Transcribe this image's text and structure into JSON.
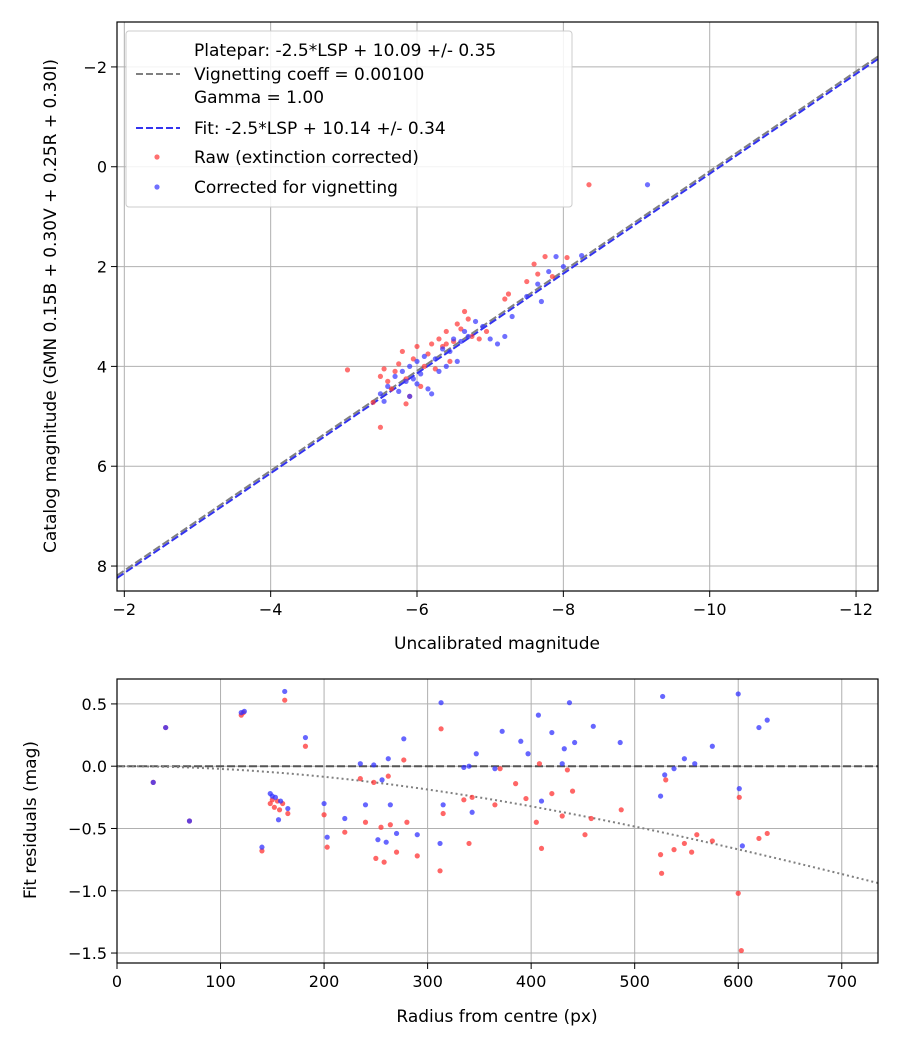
{
  "chart_data": [
    {
      "type": "scatter",
      "xlabel": "Uncalibrated magnitude",
      "ylabel": "Catalog magnitude (GMN 0.15B + 0.30V + 0.25R + 0.30I)",
      "xlim": [
        -1.9,
        -12.3
      ],
      "ylim": [
        8.5,
        -2.9
      ],
      "x_ticks": [
        -2,
        -4,
        -6,
        -8,
        -10,
        -12
      ],
      "x_tick_labels": [
        "−2",
        "−4",
        "−6",
        "−8",
        "−10",
        "−12"
      ],
      "y_ticks": [
        -2,
        0,
        2,
        4,
        6,
        8
      ],
      "y_tick_labels": [
        "−2",
        "0",
        "2",
        "4",
        "6",
        "8"
      ],
      "grid": true,
      "legend_position": "top-left",
      "legend": [
        {
          "label_lines": [
            "Platepar: -2.5*LSP + 10.09 +/- 0.35",
            "Vignetting coeff = 0.00100",
            "Gamma = 1.00"
          ],
          "style": "dashed",
          "color": "#808080"
        },
        {
          "label_lines": [
            "Fit: -2.5*LSP + 10.14 +/- 0.34"
          ],
          "style": "dashed",
          "color": "#3333ee"
        },
        {
          "label_lines": [
            "Raw (extinction corrected)"
          ],
          "style": "marker",
          "color": "#ff3333"
        },
        {
          "label_lines": [
            "Corrected for vignetting"
          ],
          "style": "marker",
          "color": "#3333ff"
        }
      ],
      "lines": [
        {
          "name": "Platepar",
          "slope": -2.5,
          "lsp_scale": -2.5,
          "intercept": 10.09,
          "color": "#808080",
          "dash": "dashed"
        },
        {
          "name": "Fit",
          "slope": -2.5,
          "lsp_scale": -2.5,
          "intercept": 10.14,
          "color": "#3333ee",
          "dash": "dashed"
        }
      ],
      "series": [
        {
          "name": "Raw (extinction corrected)",
          "color": "#ff3333",
          "points": [
            [
              -5.05,
              4.07
            ],
            [
              -5.4,
              4.72
            ],
            [
              -5.5,
              5.22
            ],
            [
              -5.55,
              4.05
            ],
            [
              -5.5,
              4.2
            ],
            [
              -5.6,
              4.3
            ],
            [
              -5.7,
              4.1
            ],
            [
              -5.75,
              3.95
            ],
            [
              -5.8,
              3.7
            ],
            [
              -5.85,
              4.25
            ],
            [
              -5.9,
              4.6
            ],
            [
              -5.95,
              3.85
            ],
            [
              -6.0,
              3.6
            ],
            [
              -6.05,
              4.4
            ],
            [
              -6.1,
              4.0
            ],
            [
              -6.15,
              3.75
            ],
            [
              -6.2,
              3.55
            ],
            [
              -6.25,
              4.05
            ],
            [
              -6.3,
              3.45
            ],
            [
              -6.35,
              3.6
            ],
            [
              -6.4,
              3.3
            ],
            [
              -6.45,
              3.9
            ],
            [
              -6.5,
              3.5
            ],
            [
              -6.55,
              3.15
            ],
            [
              -6.6,
              3.25
            ],
            [
              -6.65,
              2.9
            ],
            [
              -6.7,
              3.05
            ],
            [
              -6.75,
              3.4
            ],
            [
              -6.85,
              3.45
            ],
            [
              -6.95,
              3.3
            ],
            [
              -7.2,
              2.65
            ],
            [
              -7.25,
              2.55
            ],
            [
              -7.5,
              2.3
            ],
            [
              -7.6,
              1.95
            ],
            [
              -7.65,
              2.15
            ],
            [
              -7.75,
              1.8
            ],
            [
              -7.85,
              2.2
            ],
            [
              -8.05,
              1.82
            ],
            [
              -8.35,
              0.36
            ],
            [
              -5.85,
              4.75
            ],
            [
              -6.4,
              3.55
            ],
            [
              -5.65,
              4.45
            ]
          ]
        },
        {
          "name": "Corrected for vignetting",
          "color": "#3333ff",
          "points": [
            [
              -5.5,
              4.55
            ],
            [
              -5.55,
              4.7
            ],
            [
              -5.6,
              4.4
            ],
            [
              -5.7,
              4.2
            ],
            [
              -5.75,
              4.5
            ],
            [
              -5.8,
              4.1
            ],
            [
              -5.85,
              4.3
            ],
            [
              -5.9,
              4.0
            ],
            [
              -5.95,
              4.25
            ],
            [
              -6.0,
              3.9
            ],
            [
              -6.05,
              4.15
            ],
            [
              -6.1,
              3.8
            ],
            [
              -6.15,
              4.45
            ],
            [
              -6.2,
              4.55
            ],
            [
              -6.25,
              3.85
            ],
            [
              -6.3,
              4.1
            ],
            [
              -6.35,
              3.65
            ],
            [
              -6.4,
              4.0
            ],
            [
              -6.45,
              3.7
            ],
            [
              -6.5,
              3.45
            ],
            [
              -6.55,
              3.9
            ],
            [
              -6.6,
              3.5
            ],
            [
              -6.65,
              3.3
            ],
            [
              -6.7,
              3.4
            ],
            [
              -6.8,
              3.1
            ],
            [
              -6.9,
              3.2
            ],
            [
              -7.0,
              3.45
            ],
            [
              -7.1,
              3.55
            ],
            [
              -7.2,
              3.4
            ],
            [
              -7.3,
              3.0
            ],
            [
              -7.5,
              2.6
            ],
            [
              -7.65,
              2.35
            ],
            [
              -7.7,
              2.7
            ],
            [
              -7.8,
              2.1
            ],
            [
              -7.9,
              1.8
            ],
            [
              -8.0,
              2.0
            ],
            [
              -8.25,
              1.78
            ],
            [
              -9.15,
              0.36
            ],
            [
              -5.9,
              4.6
            ],
            [
              -6.0,
              4.35
            ]
          ]
        }
      ]
    },
    {
      "type": "scatter",
      "xlabel": "Radius from centre (px)",
      "ylabel": "Fit residuals (mag)",
      "xlim": [
        0,
        735
      ],
      "ylim": [
        -1.58,
        0.7
      ],
      "x_ticks": [
        0,
        100,
        200,
        300,
        400,
        500,
        600,
        700
      ],
      "x_tick_labels": [
        "0",
        "100",
        "200",
        "300",
        "400",
        "500",
        "600",
        "700"
      ],
      "y_ticks": [
        0.5,
        0.0,
        -0.5,
        -1.0,
        -1.5
      ],
      "y_tick_labels": [
        "0.5",
        "0.0",
        "−0.5",
        "−1.0",
        "−1.5"
      ],
      "grid": true,
      "reference_line": {
        "y": 0.0,
        "color": "#555555",
        "dash": "dashed"
      },
      "vignetting_curve": {
        "coeff": 0.001,
        "color": "#808080",
        "dash": "dotted"
      },
      "series": [
        {
          "name": "Raw (extinction corrected)",
          "color": "#ff3333",
          "points": [
            [
              35,
              -0.13
            ],
            [
              47,
              0.31
            ],
            [
              70,
              -0.44
            ],
            [
              120,
              0.41
            ],
            [
              122,
              0.43
            ],
            [
              140,
              -0.68
            ],
            [
              148,
              -0.3
            ],
            [
              150,
              -0.27
            ],
            [
              152,
              -0.33
            ],
            [
              155,
              -0.28
            ],
            [
              157,
              -0.35
            ],
            [
              160,
              -0.3
            ],
            [
              162,
              0.53
            ],
            [
              165,
              -0.38
            ],
            [
              182,
              0.16
            ],
            [
              200,
              -0.39
            ],
            [
              203,
              -0.65
            ],
            [
              220,
              -0.53
            ],
            [
              235,
              -0.1
            ],
            [
              240,
              -0.45
            ],
            [
              248,
              -0.13
            ],
            [
              250,
              -0.74
            ],
            [
              255,
              -0.49
            ],
            [
              258,
              -0.77
            ],
            [
              262,
              -0.08
            ],
            [
              264,
              -0.47
            ],
            [
              270,
              -0.69
            ],
            [
              277,
              0.05
            ],
            [
              280,
              -0.45
            ],
            [
              290,
              -0.72
            ],
            [
              312,
              -0.84
            ],
            [
              313,
              0.3
            ],
            [
              315,
              -0.38
            ],
            [
              335,
              -0.27
            ],
            [
              340,
              -0.62
            ],
            [
              343,
              -0.25
            ],
            [
              365,
              -0.31
            ],
            [
              370,
              -0.02
            ],
            [
              385,
              -0.14
            ],
            [
              395,
              -0.26
            ],
            [
              405,
              -0.45
            ],
            [
              408,
              0.02
            ],
            [
              410,
              -0.66
            ],
            [
              420,
              -0.22
            ],
            [
              430,
              -0.4
            ],
            [
              435,
              -0.03
            ],
            [
              440,
              -0.2
            ],
            [
              452,
              -0.55
            ],
            [
              458,
              -0.42
            ],
            [
              487,
              -0.35
            ],
            [
              525,
              -0.71
            ],
            [
              526,
              -0.86
            ],
            [
              530,
              -0.11
            ],
            [
              538,
              -0.67
            ],
            [
              548,
              -0.62
            ],
            [
              555,
              -0.69
            ],
            [
              560,
              -0.55
            ],
            [
              575,
              -0.6
            ],
            [
              600,
              -1.02
            ],
            [
              601,
              -0.25
            ],
            [
              603,
              -1.48
            ],
            [
              620,
              -0.58
            ],
            [
              628,
              -0.54
            ]
          ]
        },
        {
          "name": "Corrected for vignetting",
          "color": "#3333ff",
          "points": [
            [
              35,
              -0.13
            ],
            [
              47,
              0.31
            ],
            [
              70,
              -0.44
            ],
            [
              120,
              0.43
            ],
            [
              123,
              0.44
            ],
            [
              140,
              -0.65
            ],
            [
              148,
              -0.22
            ],
            [
              150,
              -0.24
            ],
            [
              153,
              -0.25
            ],
            [
              156,
              -0.43
            ],
            [
              158,
              -0.28
            ],
            [
              162,
              0.6
            ],
            [
              165,
              -0.34
            ],
            [
              182,
              0.23
            ],
            [
              200,
              -0.3
            ],
            [
              203,
              -0.57
            ],
            [
              220,
              -0.42
            ],
            [
              235,
              0.02
            ],
            [
              240,
              -0.31
            ],
            [
              248,
              0.01
            ],
            [
              252,
              -0.59
            ],
            [
              256,
              -0.11
            ],
            [
              260,
              -0.61
            ],
            [
              262,
              0.06
            ],
            [
              264,
              -0.31
            ],
            [
              270,
              -0.54
            ],
            [
              277,
              0.22
            ],
            [
              290,
              -0.55
            ],
            [
              312,
              -0.62
            ],
            [
              313,
              0.51
            ],
            [
              315,
              -0.31
            ],
            [
              335,
              -0.01
            ],
            [
              340,
              0.0
            ],
            [
              343,
              -0.37
            ],
            [
              347,
              0.1
            ],
            [
              365,
              -0.02
            ],
            [
              372,
              0.28
            ],
            [
              390,
              0.2
            ],
            [
              397,
              0.1
            ],
            [
              407,
              0.41
            ],
            [
              410,
              -0.28
            ],
            [
              420,
              0.27
            ],
            [
              430,
              0.02
            ],
            [
              432,
              0.14
            ],
            [
              437,
              0.51
            ],
            [
              442,
              0.19
            ],
            [
              460,
              0.32
            ],
            [
              486,
              0.19
            ],
            [
              525,
              -0.24
            ],
            [
              527,
              0.56
            ],
            [
              529,
              -0.07
            ],
            [
              538,
              -0.02
            ],
            [
              548,
              0.06
            ],
            [
              558,
              0.02
            ],
            [
              575,
              0.16
            ],
            [
              600,
              0.58
            ],
            [
              601,
              -0.18
            ],
            [
              604,
              -0.64
            ],
            [
              620,
              0.31
            ],
            [
              628,
              0.37
            ]
          ]
        }
      ]
    }
  ]
}
